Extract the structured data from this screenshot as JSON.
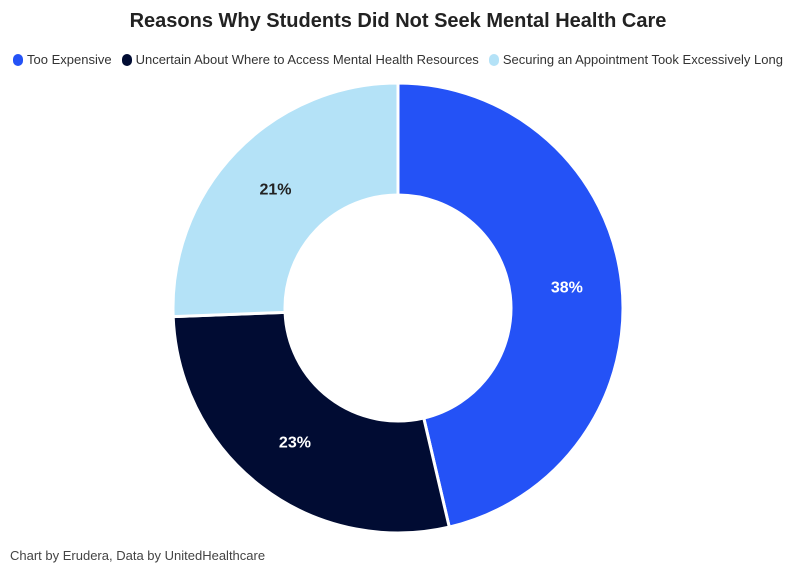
{
  "chart_data": {
    "type": "pie",
    "title": "Reasons Why Students Did Not Seek Mental Health Care",
    "legend_position": "top",
    "slices": [
      {
        "label": "Too Expensive",
        "value": 38,
        "display": "38%",
        "color": "#2452f6"
      },
      {
        "label": "Uncertain About Where to Access Mental Health Resources",
        "value": 23,
        "display": "23%",
        "color": "#010c33"
      },
      {
        "label": "Securing an Appointment Took Excessively Long",
        "value": 21,
        "display": "21%",
        "color": "#b4e2f7"
      }
    ]
  },
  "footer": {
    "credit": "Chart by Erudera, Data by UnitedHealthcare"
  }
}
